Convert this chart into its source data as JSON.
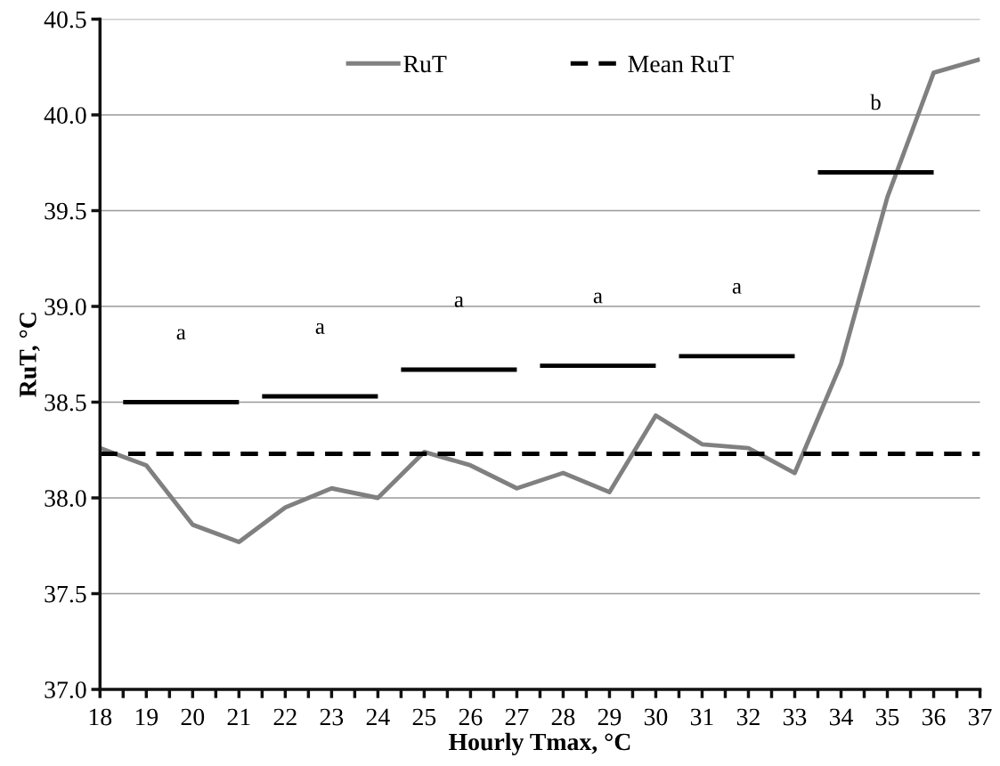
{
  "chart_data": {
    "type": "line",
    "xlabel": "Hourly Tmax, °C",
    "ylabel": "RuT, °C",
    "x": [
      18,
      19,
      20,
      21,
      22,
      23,
      24,
      25,
      26,
      27,
      28,
      29,
      30,
      31,
      32,
      33,
      34,
      35,
      36,
      37
    ],
    "series": [
      {
        "name": "RuT",
        "color": "#808080",
        "values": [
          38.26,
          38.17,
          37.86,
          37.77,
          37.95,
          38.05,
          38.0,
          38.24,
          38.17,
          38.05,
          38.13,
          38.03,
          38.43,
          38.28,
          38.26,
          38.13,
          38.7,
          39.57,
          40.22,
          40.29
        ]
      },
      {
        "name": "Mean RuT",
        "color": "#000000",
        "line_style": "dashed",
        "x": [
          18,
          37
        ],
        "values": [
          38.23,
          38.23
        ]
      },
      {
        "color": "#000000",
        "x": [
          18.5,
          21
        ],
        "values": [
          38.5,
          38.5
        ]
      },
      {
        "color": "#000000",
        "x": [
          21.5,
          24
        ],
        "values": [
          38.53,
          38.53
        ]
      },
      {
        "color": "#000000",
        "x": [
          24.5,
          27
        ],
        "values": [
          38.67,
          38.67
        ]
      },
      {
        "color": "#000000",
        "x": [
          27.5,
          30
        ],
        "values": [
          38.69,
          38.69
        ]
      },
      {
        "color": "#000000",
        "x": [
          30.5,
          33
        ],
        "values": [
          38.74,
          38.74
        ]
      },
      {
        "color": "#000000",
        "x": [
          33.5,
          36
        ],
        "values": [
          39.7,
          39.7
        ]
      }
    ],
    "annotations": [
      "a",
      "a",
      "a",
      "a",
      "a",
      "b"
    ],
    "xlim": [
      18,
      37
    ],
    "xticks": [
      18,
      {
        "value": 18.5,
        "label": null
      },
      19,
      {
        "value": 19.5,
        "label": null
      },
      20,
      {
        "value": 20.5,
        "label": null
      },
      21,
      {
        "value": 21.5,
        "label": null
      },
      22,
      {
        "value": 22.5,
        "label": null
      },
      23,
      {
        "value": 23.5,
        "label": null
      },
      24,
      {
        "value": 24.5,
        "label": null
      },
      25,
      {
        "value": 25.5,
        "label": null
      },
      26,
      {
        "value": 26.5,
        "label": null
      },
      27,
      {
        "value": 27.5,
        "label": null
      },
      28,
      {
        "value": 28.5,
        "label": null
      },
      29,
      {
        "value": 29.5,
        "label": null
      },
      30,
      {
        "value": 30.5,
        "label": null
      },
      31,
      {
        "value": 31.5,
        "label": null
      },
      32,
      {
        "value": 32.5,
        "label": null
      },
      33,
      {
        "value": 33.5,
        "label": null
      },
      34,
      {
        "value": 34.5,
        "label": null
      },
      35,
      {
        "value": 35.5,
        "label": null
      },
      36,
      {
        "value": 36.5,
        "label": null
      },
      37
    ],
    "ylim": [
      37.0,
      40.5
    ],
    "yticks": [
      {
        "value": 37.0,
        "label": "37.0"
      },
      {
        "value": 37.5,
        "label": "37.5"
      },
      {
        "value": 38.0,
        "label": "38.0"
      },
      {
        "value": 38.5,
        "label": "38.5"
      },
      {
        "value": 39.0,
        "label": "39.0"
      },
      {
        "value": 39.5,
        "label": "39.5"
      },
      {
        "value": 40.0,
        "label": "40.0"
      },
      {
        "value": 40.5,
        "label": "40.5"
      }
    ],
    "grid": "y",
    "legend": "top",
    "marker": "none",
    "line_style": "solid"
  }
}
